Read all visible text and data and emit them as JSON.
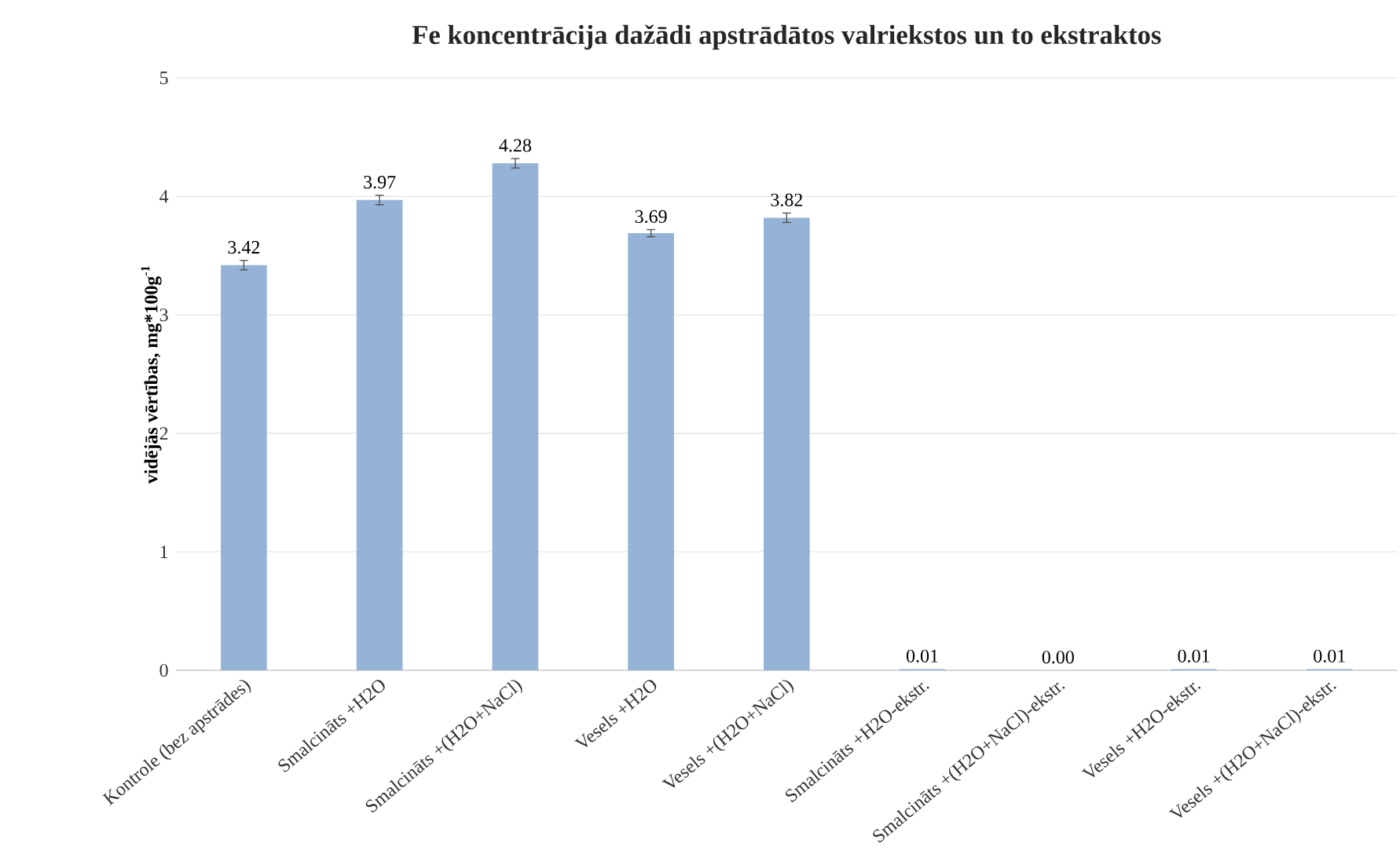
{
  "chart_data": {
    "type": "bar",
    "title": "Fe koncentrācija dažādi apstrādātos valriekstos un to ekstraktos",
    "ylabel": "vidējās vērtības, mg*100g$^{-1}$",
    "categories": [
      "Kontrole (bez apstrādes)",
      "Smalcināts +H2O",
      "Smalcināts +(H2O+NaCl)",
      "Vesels +H2O",
      "Vesels +(H2O+NaCl)",
      "Smalcināts +H2O-ekstr.",
      "Smalcināts +(H2O+NaCl)-ekstr.",
      "Vesels +H2O-ekstr.",
      "Vesels +(H2O+NaCl)-ekstr."
    ],
    "values": [
      3.42,
      3.97,
      4.28,
      3.69,
      3.82,
      0.01,
      0.0,
      0.01,
      0.01
    ],
    "value_labels": [
      "3.42",
      "3.97",
      "4.28",
      "3.69",
      "3.82",
      "0.01",
      "0.00",
      "0.01",
      "0.01"
    ],
    "errors": [
      0.04,
      0.04,
      0.04,
      0.03,
      0.04,
      null,
      null,
      null,
      null
    ],
    "color": "#95b3d7",
    "ylim": [
      0,
      5
    ],
    "yticks": [
      0,
      1,
      2,
      3,
      4,
      5
    ],
    "grid": "y"
  }
}
